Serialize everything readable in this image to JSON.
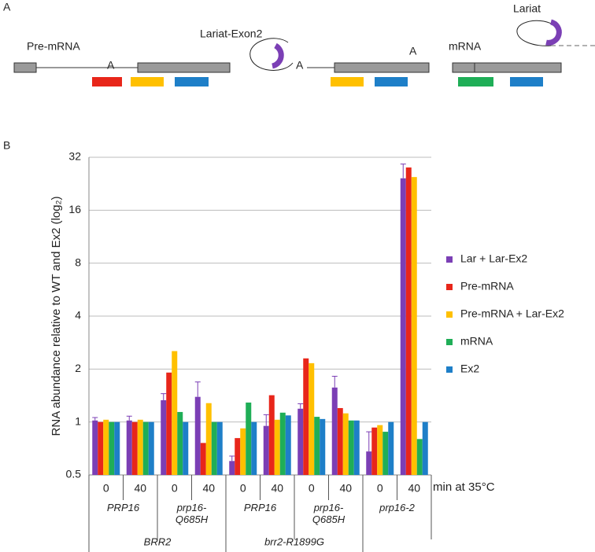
{
  "panel_a": {
    "label": "A",
    "pre_mrna": "Pre-mRNA",
    "branch_a1": "A",
    "lariat_exon2": "Lariat-Exon2",
    "branch_a2": "A",
    "branch_a3": "A",
    "mrna": "mRNA",
    "lariat": "Lariat"
  },
  "panel_b": {
    "label": "B"
  },
  "chart_data": {
    "type": "bar",
    "y_label": "RNA abundance relative to WT and Ex2 (log₂)",
    "x_label": "min at 35°C",
    "categories": [
      "0",
      "40",
      "0",
      "40",
      "0",
      "40",
      "0",
      "40",
      "0",
      "40"
    ],
    "x_levels": [
      {
        "labels": [
          "PRP16",
          "prp16-Q685H",
          "PRP16",
          "prp16-Q685H",
          "prp16-2"
        ],
        "spans": [
          2,
          2,
          2,
          2,
          2
        ]
      },
      {
        "labels": [
          "BRR2",
          "brr2-R1899G"
        ],
        "spans": [
          4,
          4
        ]
      }
    ],
    "series": [
      {
        "name": "Lar + Lar-Ex2",
        "color": "#7b3fb5",
        "values": [
          1.02,
          1.02,
          1.33,
          1.39,
          0.6,
          0.95,
          1.19,
          1.57,
          0.68,
          24.3
        ],
        "errors": [
          0.04,
          0.06,
          0.12,
          0.3,
          0.04,
          0.15,
          0.08,
          0.25,
          0.2,
          5
        ]
      },
      {
        "name": "Pre-mRNA",
        "color": "#e8261a",
        "values": [
          1.0,
          1.0,
          1.91,
          0.76,
          0.81,
          1.42,
          2.3,
          1.2,
          0.93,
          28
        ]
      },
      {
        "name": "Pre-mRNA + Lar-Ex2",
        "color": "#ffc000",
        "values": [
          1.03,
          1.03,
          2.53,
          1.28,
          0.92,
          1.03,
          2.16,
          1.12,
          0.96,
          24.7
        ]
      },
      {
        "name": "mRNA",
        "color": "#1fae57",
        "values": [
          1.0,
          1.0,
          1.14,
          1.0,
          1.29,
          1.13,
          1.07,
          1.02,
          0.88,
          0.8
        ]
      },
      {
        "name": "Ex2",
        "color": "#1e7fc8",
        "values": [
          1.0,
          1.0,
          1.0,
          1.0,
          1.0,
          1.09,
          1.04,
          1.02,
          1.0,
          1.0
        ]
      }
    ],
    "ylim": [
      0.5,
      32
    ],
    "yticks": [
      0.5,
      1,
      2,
      4,
      8,
      16,
      32
    ],
    "log_base": 2,
    "grid": true,
    "legend": "right"
  }
}
